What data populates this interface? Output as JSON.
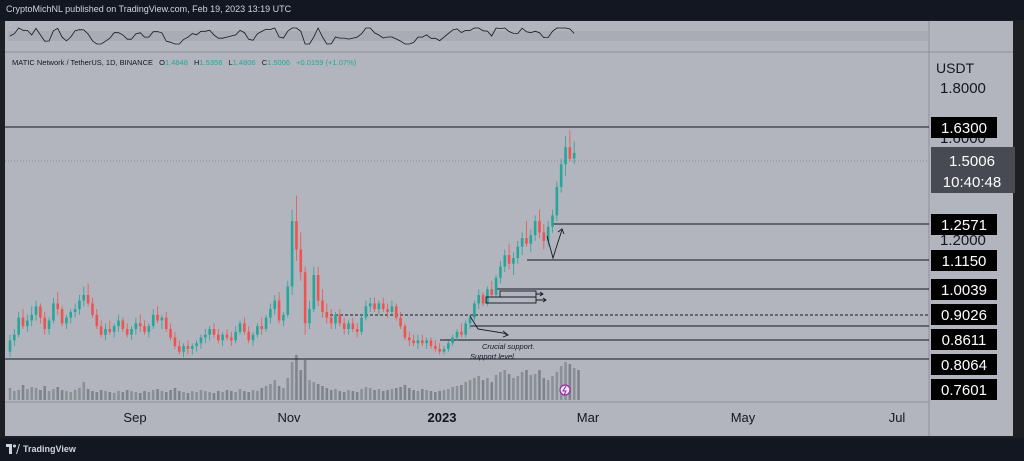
{
  "header": {
    "published_line": "CryptoMichNL published on TradingView.com, Feb 19, 2023 13:19 UTC"
  },
  "footer": {
    "brand": "TradingView"
  },
  "colors": {
    "background": "#b2b5be",
    "up": "#26a69a",
    "down": "#ef5350",
    "ink": "#131722",
    "frame": "#1e1f23"
  },
  "chart_data": {
    "type": "candlestick",
    "symbol_line": "MATIC Network / TetherUS, 1D, BINANCE",
    "ohlc": {
      "o_label": "O",
      "o": "1.4848",
      "h_label": "H",
      "h": "1.5356",
      "l_label": "L",
      "l": "1.4806",
      "c_label": "C",
      "c": "1.5006",
      "change": "+0.0159 (+1.07%)"
    },
    "currency": "USDT",
    "axis_ticks": [
      "1.8000",
      "1.2000"
    ],
    "hidden_tick": "1.6000",
    "current_price": "1.5006",
    "countdown": "10:40:48",
    "levels": [
      "1.6300",
      "1.2571",
      "1.1150",
      "1.0039",
      "0.9026",
      "0.8611",
      "0.8064",
      "0.7601"
    ],
    "x_labels": [
      "Sep",
      "Nov",
      "2023",
      "Mar",
      "May",
      "Jul"
    ],
    "annotations": [
      "Crucial support.",
      "Support level."
    ],
    "ylim": [
      0.63,
      1.88
    ],
    "candles": [
      [
        0.8,
        0.86,
        0.78,
        0.84
      ],
      [
        0.84,
        0.88,
        0.82,
        0.86
      ],
      [
        0.86,
        0.94,
        0.85,
        0.92
      ],
      [
        0.92,
        0.95,
        0.88,
        0.89
      ],
      [
        0.89,
        0.93,
        0.87,
        0.91
      ],
      [
        0.91,
        0.96,
        0.89,
        0.93
      ],
      [
        0.93,
        0.98,
        0.91,
        0.96
      ],
      [
        0.96,
        0.97,
        0.9,
        0.92
      ],
      [
        0.92,
        0.94,
        0.86,
        0.88
      ],
      [
        0.88,
        0.92,
        0.86,
        0.91
      ],
      [
        0.91,
        0.99,
        0.9,
        0.97
      ],
      [
        0.97,
        1.01,
        0.93,
        0.95
      ],
      [
        0.95,
        0.96,
        0.89,
        0.9
      ],
      [
        0.9,
        0.93,
        0.88,
        0.92
      ],
      [
        0.92,
        0.95,
        0.9,
        0.94
      ],
      [
        0.94,
        0.97,
        0.92,
        0.95
      ],
      [
        0.95,
        1.0,
        0.93,
        0.98
      ],
      [
        0.98,
        1.03,
        0.96,
        1.0
      ],
      [
        1.0,
        1.04,
        0.96,
        0.97
      ],
      [
        0.97,
        0.99,
        0.92,
        0.93
      ],
      [
        0.93,
        0.95,
        0.88,
        0.89
      ],
      [
        0.89,
        0.91,
        0.85,
        0.86
      ],
      [
        0.86,
        0.9,
        0.84,
        0.88
      ],
      [
        0.88,
        0.91,
        0.86,
        0.87
      ],
      [
        0.87,
        0.9,
        0.85,
        0.89
      ],
      [
        0.89,
        0.93,
        0.87,
        0.91
      ],
      [
        0.91,
        0.92,
        0.87,
        0.88
      ],
      [
        0.88,
        0.9,
        0.85,
        0.86
      ],
      [
        0.86,
        0.89,
        0.84,
        0.88
      ],
      [
        0.88,
        0.92,
        0.86,
        0.9
      ],
      [
        0.9,
        0.93,
        0.87,
        0.89
      ],
      [
        0.89,
        0.91,
        0.86,
        0.87
      ],
      [
        0.87,
        0.9,
        0.85,
        0.89
      ],
      [
        0.89,
        0.95,
        0.88,
        0.93
      ],
      [
        0.93,
        0.96,
        0.9,
        0.91
      ],
      [
        0.91,
        0.93,
        0.88,
        0.92
      ],
      [
        0.92,
        0.94,
        0.87,
        0.88
      ],
      [
        0.88,
        0.9,
        0.84,
        0.85
      ],
      [
        0.85,
        0.87,
        0.81,
        0.82
      ],
      [
        0.82,
        0.84,
        0.79,
        0.8
      ],
      [
        0.8,
        0.83,
        0.78,
        0.82
      ],
      [
        0.82,
        0.84,
        0.79,
        0.81
      ],
      [
        0.81,
        0.83,
        0.79,
        0.82
      ],
      [
        0.82,
        0.84,
        0.8,
        0.83
      ],
      [
        0.83,
        0.86,
        0.81,
        0.85
      ],
      [
        0.85,
        0.88,
        0.83,
        0.86
      ],
      [
        0.86,
        0.89,
        0.84,
        0.88
      ],
      [
        0.88,
        0.9,
        0.85,
        0.86
      ],
      [
        0.86,
        0.88,
        0.83,
        0.84
      ],
      [
        0.84,
        0.87,
        0.82,
        0.86
      ],
      [
        0.86,
        0.88,
        0.84,
        0.85
      ],
      [
        0.85,
        0.87,
        0.82,
        0.84
      ],
      [
        0.84,
        0.89,
        0.83,
        0.87
      ],
      [
        0.87,
        0.91,
        0.86,
        0.9
      ],
      [
        0.9,
        0.92,
        0.86,
        0.87
      ],
      [
        0.87,
        0.89,
        0.83,
        0.84
      ],
      [
        0.84,
        0.87,
        0.82,
        0.86
      ],
      [
        0.86,
        0.9,
        0.85,
        0.89
      ],
      [
        0.89,
        0.92,
        0.86,
        0.88
      ],
      [
        0.88,
        0.93,
        0.87,
        0.92
      ],
      [
        0.92,
        0.97,
        0.9,
        0.95
      ],
      [
        0.95,
        1.0,
        0.93,
        0.98
      ],
      [
        0.98,
        1.01,
        0.9,
        0.91
      ],
      [
        0.91,
        0.94,
        0.89,
        0.93
      ],
      [
        0.93,
        1.05,
        0.92,
        1.03
      ],
      [
        1.03,
        1.3,
        1.0,
        1.26
      ],
      [
        1.26,
        1.35,
        1.12,
        1.16
      ],
      [
        1.16,
        1.22,
        1.05,
        1.08
      ],
      [
        1.08,
        1.1,
        0.86,
        0.9
      ],
      [
        0.9,
        0.98,
        0.88,
        0.95
      ],
      [
        0.95,
        1.1,
        0.94,
        1.07
      ],
      [
        1.07,
        1.1,
        0.96,
        0.98
      ],
      [
        0.98,
        1.02,
        0.92,
        0.94
      ],
      [
        0.94,
        0.97,
        0.9,
        0.92
      ],
      [
        0.92,
        0.95,
        0.88,
        0.9
      ],
      [
        0.9,
        0.94,
        0.88,
        0.93
      ],
      [
        0.93,
        0.95,
        0.89,
        0.9
      ],
      [
        0.9,
        0.92,
        0.86,
        0.88
      ],
      [
        0.88,
        0.91,
        0.86,
        0.9
      ],
      [
        0.9,
        0.92,
        0.87,
        0.88
      ],
      [
        0.88,
        0.9,
        0.85,
        0.87
      ],
      [
        0.87,
        0.93,
        0.86,
        0.92
      ],
      [
        0.92,
        0.98,
        0.91,
        0.96
      ],
      [
        0.96,
        0.99,
        0.94,
        0.97
      ],
      [
        0.97,
        0.99,
        0.94,
        0.95
      ],
      [
        0.95,
        0.98,
        0.93,
        0.97
      ],
      [
        0.97,
        0.99,
        0.94,
        0.95
      ],
      [
        0.95,
        0.97,
        0.92,
        0.94
      ],
      [
        0.94,
        0.98,
        0.93,
        0.96
      ],
      [
        0.96,
        0.97,
        0.91,
        0.92
      ],
      [
        0.92,
        0.94,
        0.88,
        0.89
      ],
      [
        0.89,
        0.9,
        0.84,
        0.85
      ],
      [
        0.85,
        0.87,
        0.82,
        0.84
      ],
      [
        0.84,
        0.86,
        0.82,
        0.83
      ],
      [
        0.83,
        0.86,
        0.81,
        0.84
      ],
      [
        0.84,
        0.86,
        0.82,
        0.83
      ],
      [
        0.83,
        0.85,
        0.81,
        0.84
      ],
      [
        0.84,
        0.85,
        0.81,
        0.82
      ],
      [
        0.82,
        0.84,
        0.8,
        0.81
      ],
      [
        0.81,
        0.83,
        0.79,
        0.8
      ],
      [
        0.8,
        0.82,
        0.79,
        0.81
      ],
      [
        0.81,
        0.84,
        0.8,
        0.83
      ],
      [
        0.83,
        0.86,
        0.82,
        0.85
      ],
      [
        0.85,
        0.88,
        0.84,
        0.87
      ],
      [
        0.87,
        0.9,
        0.85,
        0.86
      ],
      [
        0.86,
        0.91,
        0.85,
        0.9
      ],
      [
        0.9,
        0.93,
        0.88,
        0.92
      ],
      [
        0.92,
        0.98,
        0.91,
        0.97
      ],
      [
        0.97,
        1.02,
        0.95,
        1.0
      ],
      [
        1.0,
        1.01,
        0.96,
        0.97
      ],
      [
        0.97,
        1.03,
        0.96,
        1.02
      ],
      [
        1.02,
        1.05,
        0.99,
        1.0
      ],
      [
        1.0,
        1.07,
        0.99,
        1.06
      ],
      [
        1.06,
        1.12,
        1.04,
        1.1
      ],
      [
        1.1,
        1.16,
        1.08,
        1.14
      ],
      [
        1.14,
        1.18,
        1.09,
        1.11
      ],
      [
        1.11,
        1.15,
        1.07,
        1.13
      ],
      [
        1.13,
        1.19,
        1.11,
        1.17
      ],
      [
        1.17,
        1.22,
        1.14,
        1.2
      ],
      [
        1.2,
        1.26,
        1.17,
        1.18
      ],
      [
        1.18,
        1.23,
        1.15,
        1.21
      ],
      [
        1.21,
        1.28,
        1.19,
        1.26
      ],
      [
        1.26,
        1.3,
        1.2,
        1.22
      ],
      [
        1.22,
        1.25,
        1.16,
        1.19
      ],
      [
        1.19,
        1.26,
        1.17,
        1.24
      ],
      [
        1.24,
        1.3,
        1.22,
        1.28
      ],
      [
        1.28,
        1.4,
        1.26,
        1.38
      ],
      [
        1.38,
        1.48,
        1.36,
        1.46
      ],
      [
        1.46,
        1.56,
        1.42,
        1.52
      ],
      [
        1.52,
        1.58,
        1.47,
        1.48
      ],
      [
        1.48,
        1.54,
        1.46,
        1.5
      ]
    ],
    "volumes": [
      12,
      9,
      10,
      15,
      11,
      13,
      12,
      10,
      14,
      9,
      11,
      13,
      10,
      9,
      8,
      10,
      12,
      18,
      11,
      9,
      8,
      10,
      9,
      8,
      7,
      9,
      8,
      10,
      9,
      8,
      7,
      9,
      8,
      10,
      11,
      9,
      8,
      10,
      12,
      9,
      8,
      7,
      9,
      8,
      10,
      9,
      8,
      7,
      9,
      8,
      10,
      9,
      8,
      11,
      9,
      8,
      10,
      9,
      12,
      14,
      16,
      20,
      14,
      12,
      22,
      38,
      45,
      30,
      40,
      20,
      18,
      16,
      14,
      12,
      10,
      11,
      9,
      8,
      10,
      9,
      8,
      11,
      13,
      12,
      10,
      11,
      9,
      10,
      11,
      12,
      13,
      15,
      12,
      10,
      9,
      11,
      10,
      9,
      8,
      9,
      10,
      11,
      13,
      14,
      15,
      18,
      20,
      22,
      24,
      20,
      22,
      18,
      25,
      28,
      30,
      26,
      22,
      24,
      28,
      30,
      25,
      26,
      30,
      22,
      20,
      24,
      28,
      34,
      38,
      36,
      32,
      30
    ]
  }
}
